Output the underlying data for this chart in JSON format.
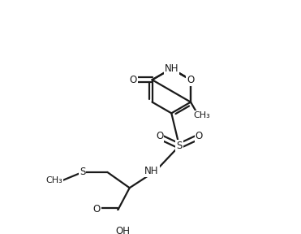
{
  "background_color": "#ffffff",
  "line_color": "#1a1a1a",
  "line_width": 1.6,
  "font_size": 8.5,
  "figsize": [
    3.71,
    2.88
  ],
  "dpi": 100,
  "xlim": [
    0,
    10
  ],
  "ylim": [
    0,
    8
  ]
}
